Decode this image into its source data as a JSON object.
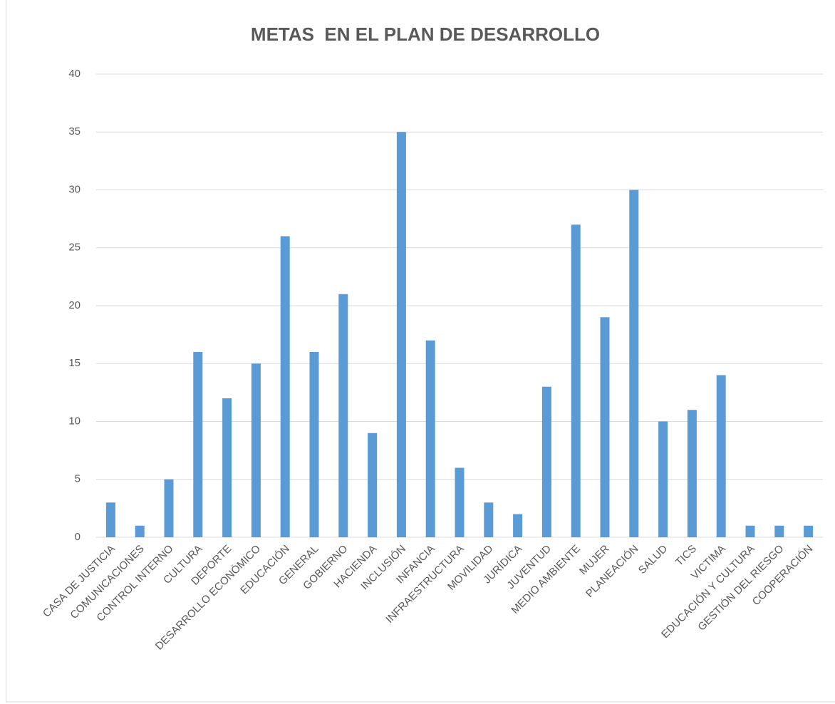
{
  "chart_data": {
    "type": "bar",
    "title": "METAS  EN EL PLAN DE DESARROLLO",
    "categories": [
      "CASA DE JUSTICIA",
      "COMUNICACIONES",
      "CONTROL INTERNO",
      "CULTURA",
      "DEPORTE",
      "DESARROLLO ECONÓMICO",
      "EDUCACIÓN",
      "GENERAL",
      "GOBIERNO",
      "HACIENDA",
      "INCLUSIÓN",
      "INFANCIA",
      "INFRAESTRUCTURA",
      "MOVILIDAD",
      "JURÍDICA",
      "JUVENTUD",
      "MEDIO AMBIENTE",
      "MUJER",
      "PLANEACIÓN",
      "SALUD",
      "TICS",
      "VICTIMA",
      "EDUCACIÓN Y CULTURA",
      "GESTIÓN DEL RIESGO",
      "COOPERACIÓN"
    ],
    "values": [
      3,
      1,
      5,
      16,
      12,
      15,
      26,
      16,
      21,
      9,
      35,
      17,
      6,
      3,
      2,
      13,
      27,
      19,
      30,
      10,
      11,
      14,
      1,
      1,
      1
    ],
    "color": "#5b9bd5",
    "ylim": [
      0,
      40
    ],
    "yticks": [
      0,
      5,
      10,
      15,
      20,
      25,
      30,
      35,
      40
    ],
    "grid": true
  }
}
